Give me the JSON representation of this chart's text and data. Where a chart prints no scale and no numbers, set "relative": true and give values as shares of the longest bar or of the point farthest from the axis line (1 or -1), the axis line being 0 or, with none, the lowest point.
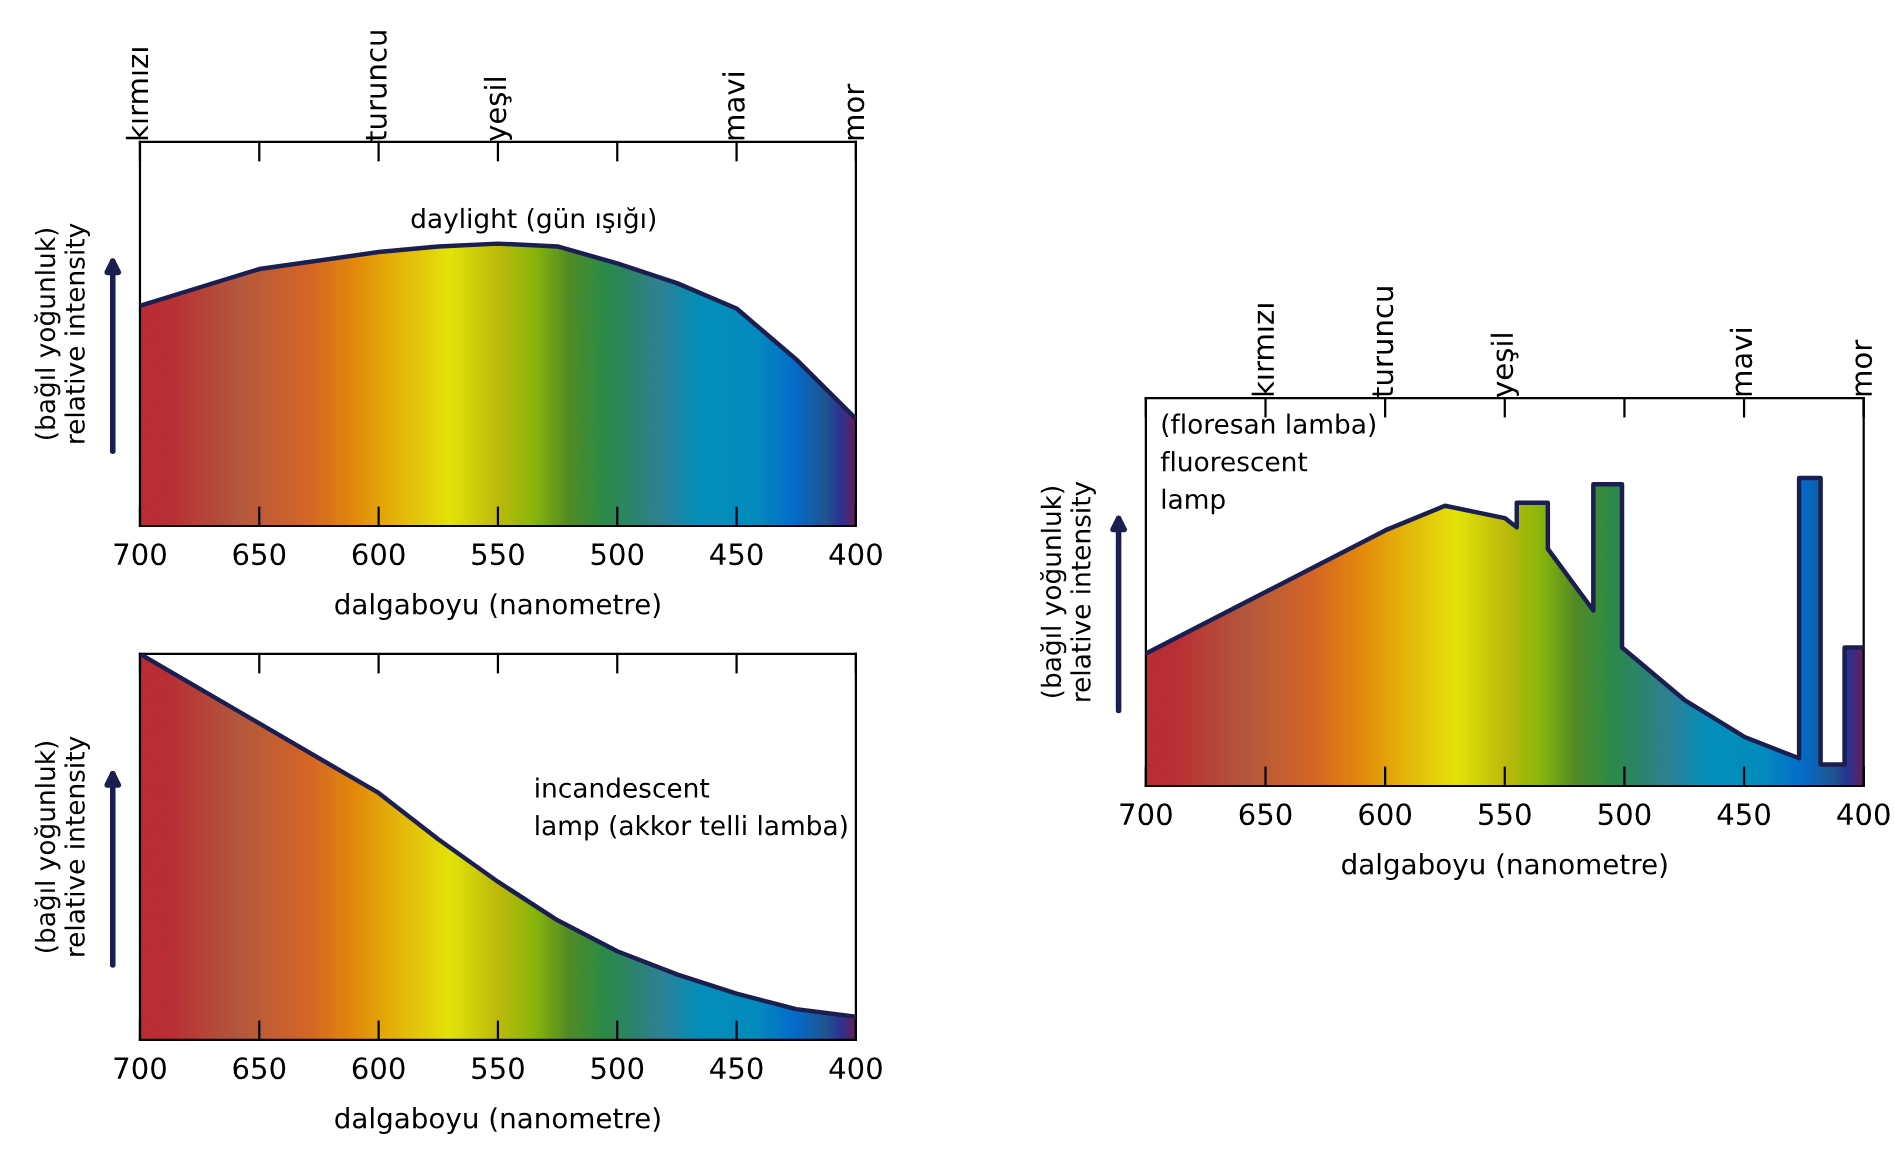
{
  "chart_data": [
    {
      "type": "area",
      "relative": true,
      "xlabel": "dalgaboyu (nanometre)",
      "ylabel": "(bağıl yoğunluk)\nrelative intensity",
      "xlim": [
        700,
        400
      ],
      "xticks": [
        700,
        650,
        600,
        550,
        500,
        450,
        400
      ],
      "annotations": [
        "daylight (gün ışığı)",
        "kırmızı",
        "turuncu",
        "yeşil",
        "mavi",
        "mor"
      ],
      "series": [
        {
          "color": "#1b1f4f",
          "x": [
            700,
            650,
            600,
            575,
            550,
            525,
            500,
            475,
            450,
            425,
            400
          ],
          "values": [
            0.78,
            0.91,
            0.97,
            0.99,
            1.0,
            0.99,
            0.93,
            0.86,
            0.77,
            0.59,
            0.38
          ]
        }
      ]
    },
    {
      "type": "area",
      "relative": true,
      "xlabel": "dalgaboyu (nanometre)",
      "ylabel": "(bağıl yoğunluk)\nrelative intensity",
      "xlim": [
        700,
        400
      ],
      "xticks": [
        700,
        650,
        600,
        550,
        500,
        450,
        400
      ],
      "annotations": [
        "incandescent\nlamp (akkor telli lamba)"
      ],
      "series": [
        {
          "color": "#1b1f4f",
          "x": [
            700,
            650,
            600,
            575,
            550,
            525,
            500,
            475,
            450,
            425,
            400
          ],
          "values": [
            1.0,
            0.82,
            0.64,
            0.52,
            0.41,
            0.31,
            0.23,
            0.17,
            0.12,
            0.08,
            0.06
          ]
        }
      ]
    },
    {
      "type": "area",
      "relative": true,
      "xlabel": "dalgaboyu (nanometre)",
      "ylabel": "(bağıl yoğunluk)\nrelative intensity",
      "xlim": [
        700,
        400
      ],
      "xticks": [
        700,
        650,
        600,
        550,
        500,
        450,
        400
      ],
      "annotations": [
        "(floresan lamba)\nfluorescent\nlamp",
        "kırmızı",
        "turuncu",
        "yeşil",
        "mavi",
        "mor"
      ],
      "series": [
        {
          "color": "#1b1f4f",
          "x": [
            700,
            650,
            600,
            575,
            550,
            545,
            545,
            532,
            532,
            513,
            513,
            501,
            501,
            475,
            450,
            427,
            427,
            418,
            418,
            408,
            408,
            400
          ],
          "values": [
            0.43,
            0.63,
            0.83,
            0.91,
            0.87,
            0.84,
            0.92,
            0.92,
            0.77,
            0.57,
            0.98,
            0.98,
            0.45,
            0.28,
            0.16,
            0.09,
            1.0,
            1.0,
            0.07,
            0.07,
            0.45,
            0.45
          ]
        }
      ]
    }
  ]
}
